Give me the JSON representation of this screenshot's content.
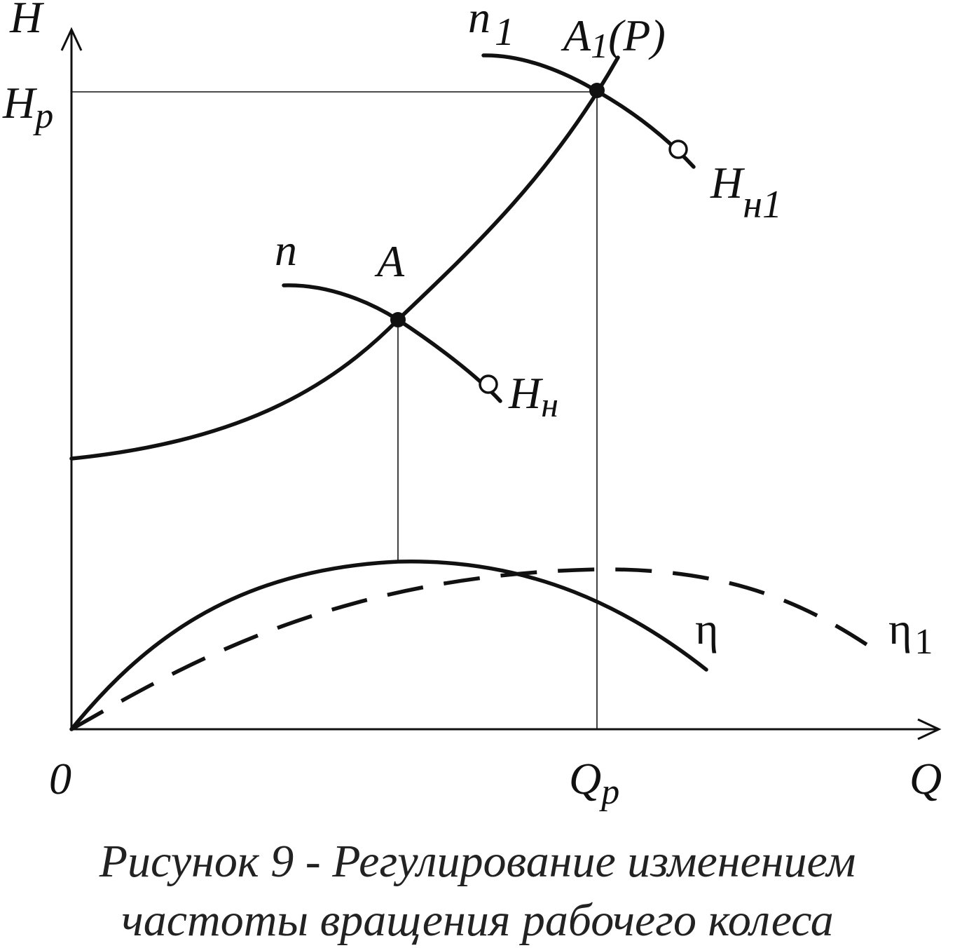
{
  "axes": {
    "y_label": "H",
    "x_label": "Q",
    "origin_label": "0",
    "hp_label": "H",
    "hp_sub": "p",
    "qp_label": "Q",
    "qp_sub": "p"
  },
  "curves": {
    "n_label": "n",
    "n1_label": "n",
    "n1_sub": "1",
    "hn_label": "H",
    "hn_sub": "н",
    "hn1_label": "H",
    "hn1_sub": "н1",
    "eta_label": "η",
    "eta1_label": "η",
    "eta1_sub": "1"
  },
  "points": {
    "a_label": "A",
    "a1_label": "A",
    "a1_sub": "1",
    "a1_suffix": "(P)"
  },
  "caption": {
    "line1": "Рисунок 9 - Регулирование изменением",
    "line2": "частоты вращения рабочего колеса"
  }
}
